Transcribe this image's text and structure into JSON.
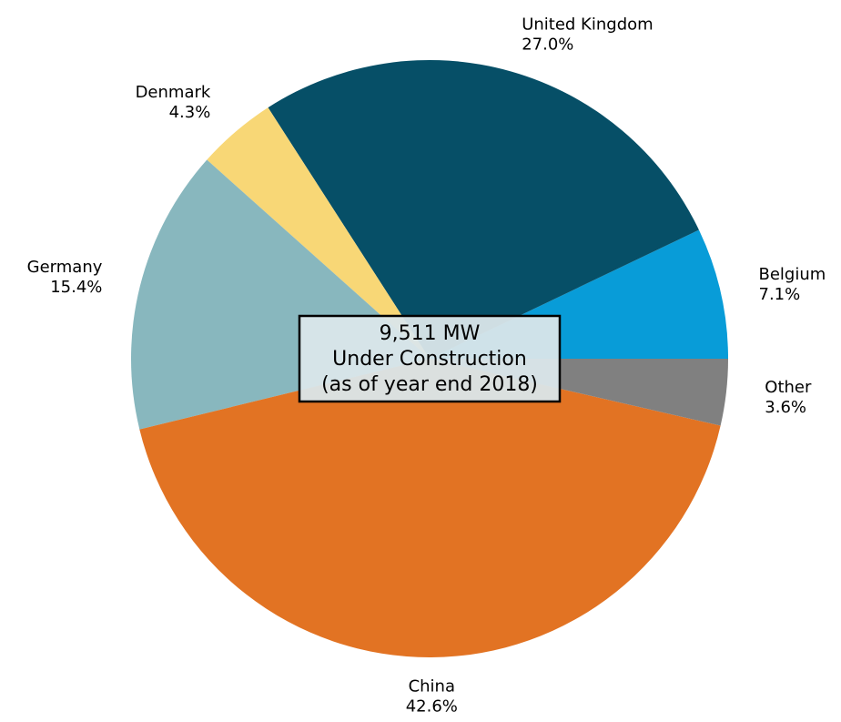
{
  "chart_data": {
    "type": "pie",
    "categories": [
      "Belgium",
      "United Kingdom",
      "Denmark",
      "Germany",
      "China",
      "Other"
    ],
    "values": [
      7.1,
      27.0,
      4.3,
      15.4,
      42.6,
      3.6
    ],
    "value_labels": [
      "7.1%",
      "27.0%",
      "4.3%",
      "15.4%",
      "42.6%",
      "3.6%"
    ],
    "colors": [
      "#089cd8",
      "#064f67",
      "#f8d776",
      "#88b7be",
      "#e27323",
      "#808080"
    ],
    "start_angle_deg": 0,
    "direction": "counterclockwise",
    "center_box": {
      "lines": [
        "9,511 MW",
        "Under Construction",
        "(as of year end 2018)"
      ],
      "background": "#dae6ea",
      "border": "#000000"
    }
  }
}
